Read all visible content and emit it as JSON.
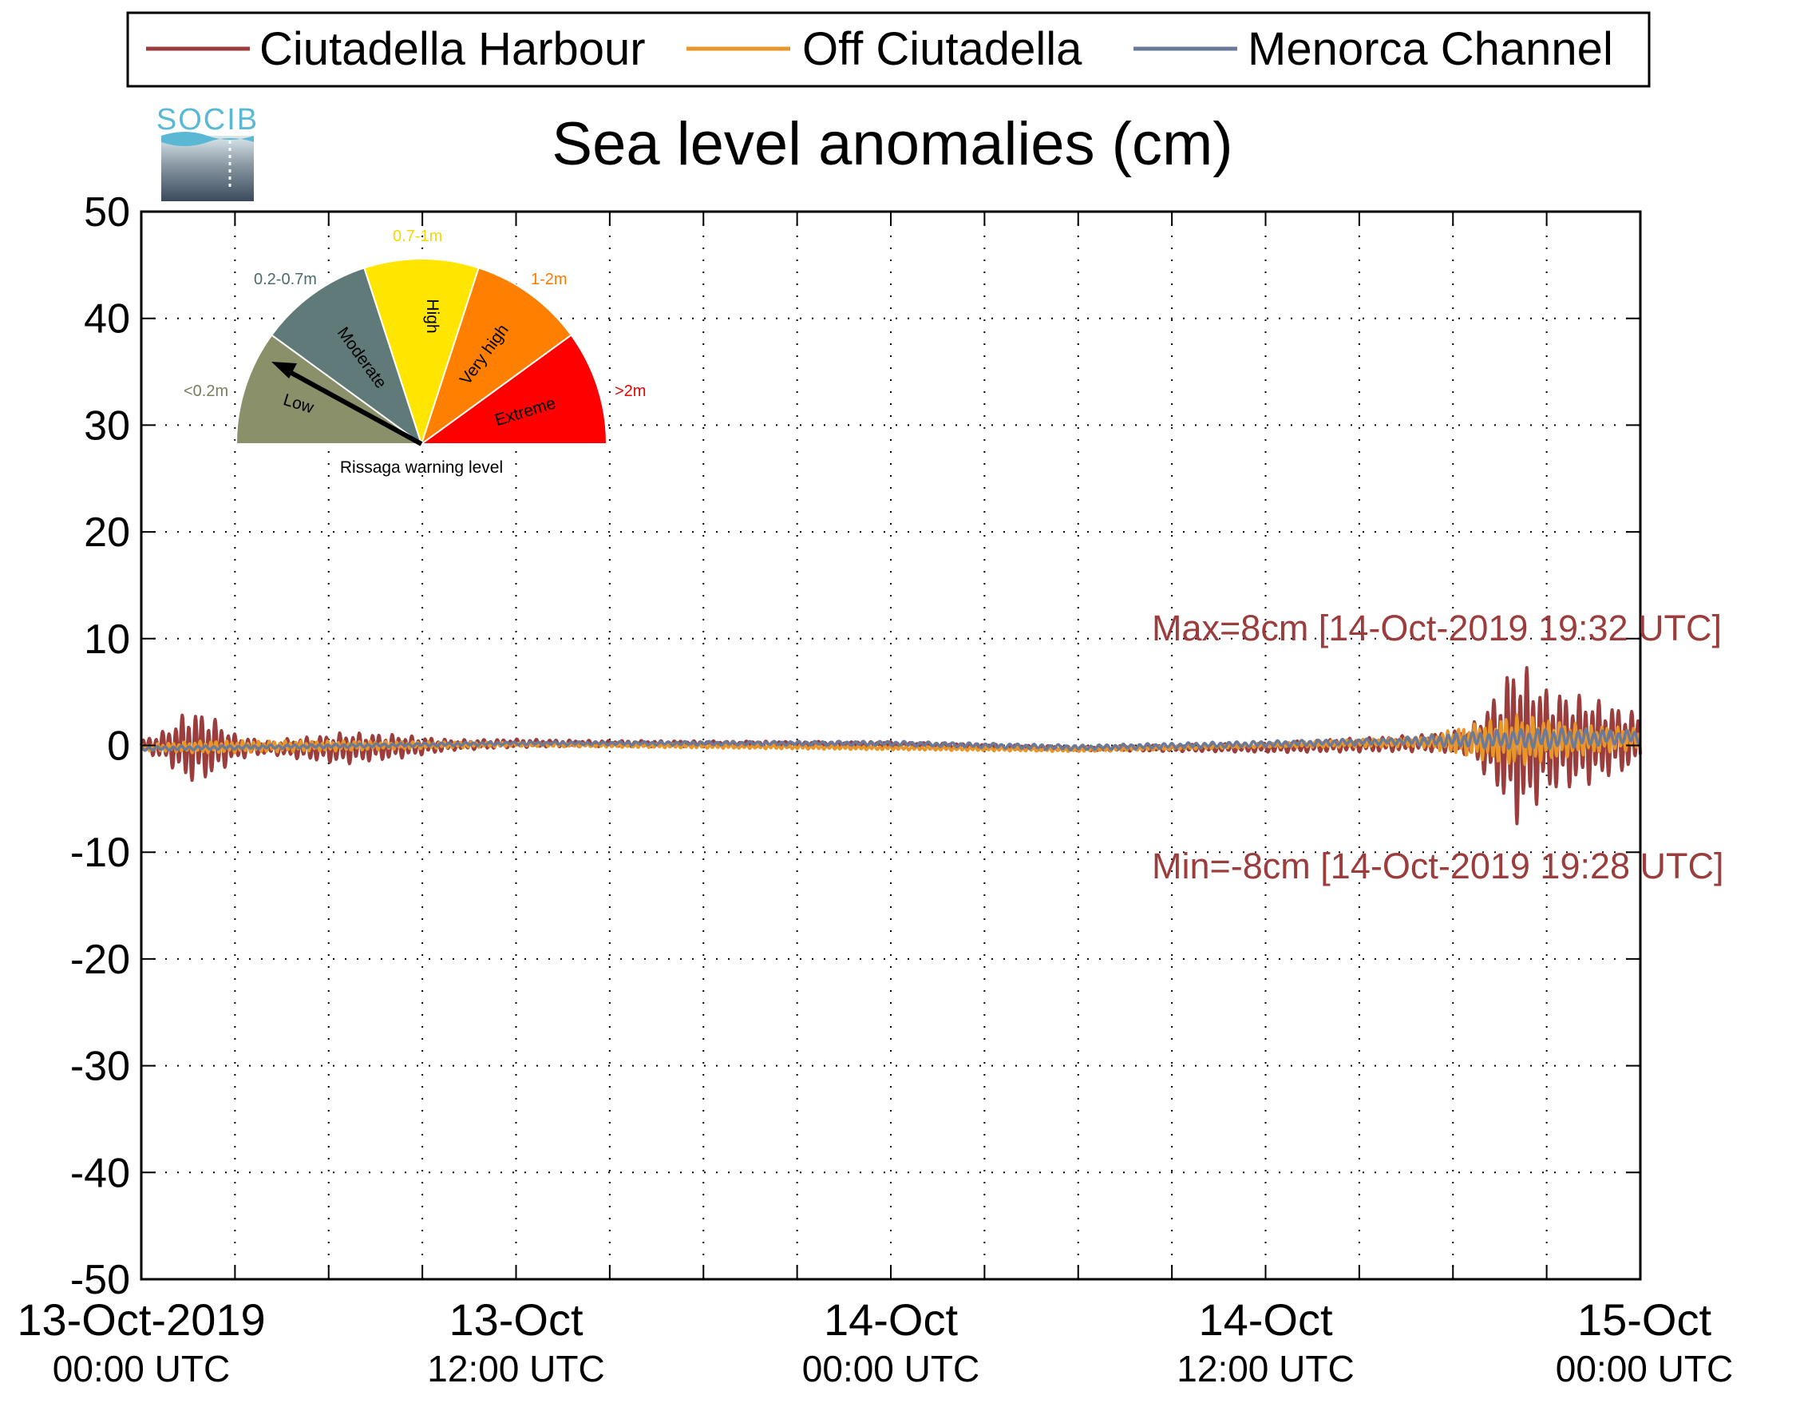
{
  "chart_data": {
    "type": "line",
    "title": "Sea level anomalies (cm)",
    "xlabel": "",
    "ylabel": "",
    "ylim": [
      -50,
      50
    ],
    "yticks": [
      50,
      40,
      30,
      20,
      10,
      0,
      -10,
      -20,
      -30,
      -40,
      -50
    ],
    "xlim_hours": [
      0,
      48
    ],
    "xtick_labels": [
      {
        "hour": 0,
        "line1": "13-Oct-2019",
        "line2": "00:00 UTC"
      },
      {
        "hour": 12,
        "line1": "13-Oct",
        "line2": "12:00 UTC"
      },
      {
        "hour": 24,
        "line1": "14-Oct",
        "line2": "00:00 UTC"
      },
      {
        "hour": 36,
        "line1": "14-Oct",
        "line2": "12:00 UTC"
      },
      {
        "hour": 48,
        "line1": "15-Oct",
        "line2": "00:00 UTC"
      }
    ],
    "minor_tick_hours": [
      3,
      6,
      9,
      15,
      18,
      21,
      27,
      30,
      33,
      39,
      42,
      45
    ],
    "grid": true,
    "legend_position": "top",
    "series": [
      {
        "name": "Ciutadella Harbour",
        "color": "#9b3d3d",
        "envelope": [
          {
            "hour": 0.0,
            "amp": 0.5
          },
          {
            "hour": 0.8,
            "amp": 1.5
          },
          {
            "hour": 1.5,
            "amp": 3.5
          },
          {
            "hour": 2.2,
            "amp": 3.0
          },
          {
            "hour": 3.0,
            "amp": 1.2
          },
          {
            "hour": 4.0,
            "amp": 0.6
          },
          {
            "hour": 5.0,
            "amp": 1.0
          },
          {
            "hour": 6.5,
            "amp": 1.5
          },
          {
            "hour": 8.0,
            "amp": 1.2
          },
          {
            "hour": 10.0,
            "amp": 0.5
          },
          {
            "hour": 14.0,
            "amp": 0.3
          },
          {
            "hour": 30.0,
            "amp": 0.2
          },
          {
            "hour": 35.0,
            "amp": 0.4
          },
          {
            "hour": 38.0,
            "amp": 0.6
          },
          {
            "hour": 41.0,
            "amp": 0.8
          },
          {
            "hour": 42.5,
            "amp": 1.2
          },
          {
            "hour": 43.5,
            "amp": 5.0
          },
          {
            "hour": 44.0,
            "amp": 8.0
          },
          {
            "hour": 45.0,
            "amp": 5.0
          },
          {
            "hour": 46.5,
            "amp": 4.0
          },
          {
            "hour": 48.0,
            "amp": 2.5
          }
        ],
        "baseline": [
          {
            "hour": 0,
            "value": 0.0
          },
          {
            "hour": 6,
            "value": -0.3
          },
          {
            "hour": 12,
            "value": 0.2
          },
          {
            "hour": 24,
            "value": 0.1
          },
          {
            "hour": 30,
            "value": -0.3
          },
          {
            "hour": 36,
            "value": -0.2
          },
          {
            "hour": 42,
            "value": 0.3
          },
          {
            "hour": 48,
            "value": 0.5
          }
        ],
        "max": {
          "value": 8,
          "time": "14-Oct-2019 19:32 UTC"
        },
        "min": {
          "value": -8,
          "time": "14-Oct-2019 19:28 UTC"
        }
      },
      {
        "name": "Off Ciutadella",
        "color": "#e8962a",
        "envelope": [
          {
            "hour": 0.0,
            "amp": 0.3
          },
          {
            "hour": 2.0,
            "amp": 0.6
          },
          {
            "hour": 6.0,
            "amp": 0.5
          },
          {
            "hour": 12.0,
            "amp": 0.2
          },
          {
            "hour": 36.0,
            "amp": 0.2
          },
          {
            "hour": 41.0,
            "amp": 0.5
          },
          {
            "hour": 42.5,
            "amp": 1.5
          },
          {
            "hour": 44.0,
            "amp": 2.5
          },
          {
            "hour": 46.0,
            "amp": 1.5
          },
          {
            "hour": 48.0,
            "amp": 1.0
          }
        ],
        "baseline": [
          {
            "hour": 0,
            "value": -0.2
          },
          {
            "hour": 12,
            "value": 0.1
          },
          {
            "hour": 30,
            "value": -0.4
          },
          {
            "hour": 42,
            "value": 0.4
          },
          {
            "hour": 48,
            "value": 0.6
          }
        ]
      },
      {
        "name": "Menorca Channel",
        "color": "#6b7a99",
        "envelope": [
          {
            "hour": 0.0,
            "amp": 0.2
          },
          {
            "hour": 12.0,
            "amp": 0.15
          },
          {
            "hour": 40.0,
            "amp": 0.3
          },
          {
            "hour": 43.0,
            "amp": 0.8
          },
          {
            "hour": 45.0,
            "amp": 1.0
          },
          {
            "hour": 48.0,
            "amp": 0.6
          }
        ],
        "baseline": [
          {
            "hour": 0,
            "value": -0.3
          },
          {
            "hour": 12,
            "value": 0.2
          },
          {
            "hour": 24,
            "value": 0.2
          },
          {
            "hour": 30,
            "value": -0.2
          },
          {
            "hour": 42,
            "value": 0.5
          },
          {
            "hour": 48,
            "value": 0.8
          }
        ]
      }
    ],
    "annotations": {
      "max_text": "Max=8cm [14-Oct-2019 19:32 UTC]",
      "min_text": "Min=-8cm [14-Oct-2019 19:28 UTC]",
      "color": "#9b3d3d"
    }
  },
  "logo": {
    "text": "SOCIB",
    "color": "#5bb8d4"
  },
  "gauge": {
    "caption": "Rissaga warning level",
    "needle_level": "Low",
    "segments": [
      {
        "label": "Low",
        "range": "<0.2m",
        "color": "#8a906a",
        "range_color": "#7a7e5c"
      },
      {
        "label": "Moderate",
        "range": "0.2-0.7m",
        "color": "#5f7a78",
        "range_color": "#4d6a6c"
      },
      {
        "label": "High",
        "range": "0.7-1m",
        "color": "#ffe600",
        "range_color": "#f5d800"
      },
      {
        "label": "Very high",
        "range": "1-2m",
        "color": "#ff8000",
        "range_color": "#ff7a00"
      },
      {
        "label": "Extreme",
        "range": ">2m",
        "color": "#ff0000",
        "range_color": "#ee0000"
      }
    ]
  }
}
